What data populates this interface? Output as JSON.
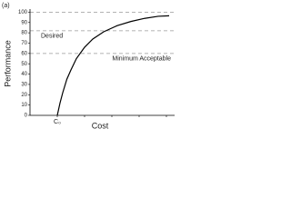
{
  "chart_data": {
    "type": "line",
    "panel_label": "(a)",
    "xlabel": "Cost",
    "ylabel": "Performance",
    "x": [
      1,
      1.1,
      1.2,
      1.35,
      1.5,
      1.7,
      2,
      2.3,
      2.7,
      3.2,
      3.7,
      4.2,
      4.7,
      5.1
    ],
    "series": [
      {
        "color": "#000000",
        "values": [
          0,
          12,
          22,
          35,
          44,
          55,
          66,
          74,
          81,
          87,
          91,
          94,
          96,
          96.5
        ]
      }
    ],
    "xlim": [
      0,
      5.3
    ],
    "xticks": [
      {
        "value": 1,
        "label": "C₀"
      },
      {
        "value": 2,
        "label": null
      },
      {
        "value": 3,
        "label": null
      },
      {
        "value": 4,
        "label": null
      },
      {
        "value": 5,
        "label": null
      }
    ],
    "ylim": [
      0,
      103
    ],
    "yticks": [
      0,
      10,
      20,
      30,
      40,
      50,
      60,
      70,
      80,
      90,
      100
    ],
    "reference_lines": [
      {
        "value": 100,
        "label": null
      },
      {
        "value": 82,
        "label": "Desired"
      },
      {
        "value": 60,
        "label": "Minimum Acceptable"
      }
    ],
    "reference_color": "#999999"
  }
}
